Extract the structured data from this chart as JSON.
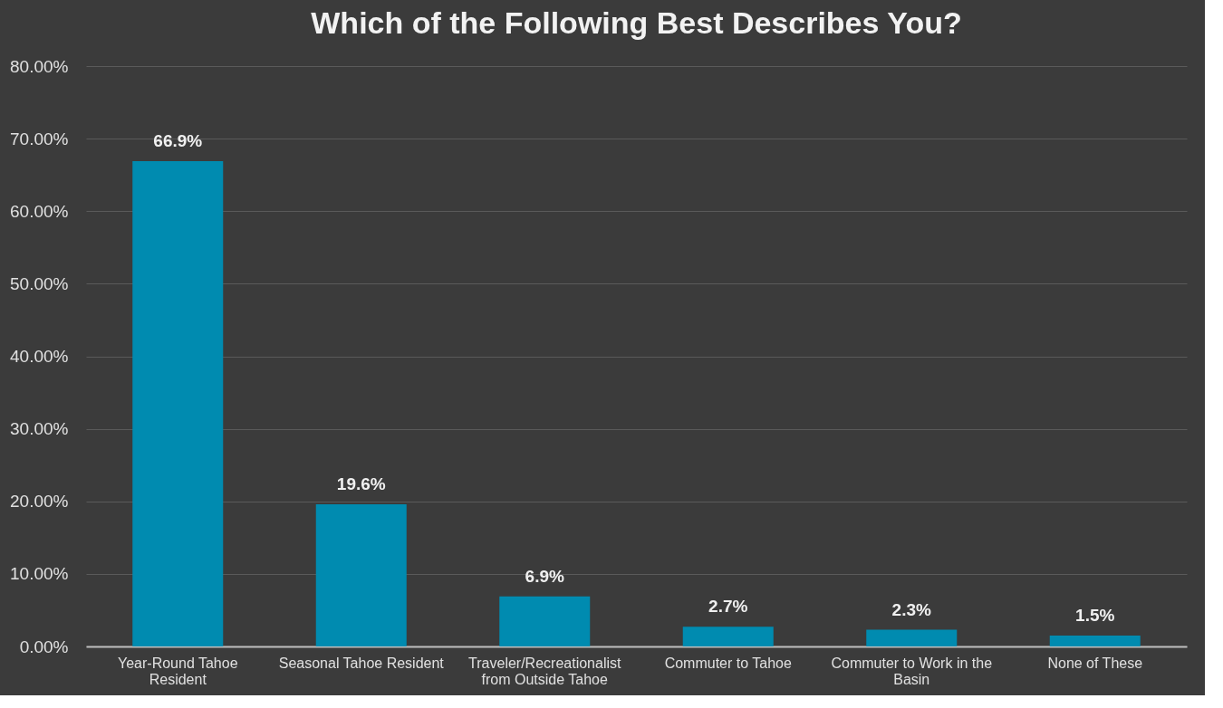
{
  "chart_data": {
    "type": "bar",
    "title": "Which of the Following Best Describes You?",
    "categories": [
      "Year-Round Tahoe Resident",
      "Seasonal Tahoe Resident",
      "Traveler/Recreationalist from Outside Tahoe",
      "Commuter to Tahoe",
      "Commuter to Work in the Basin",
      "None of These"
    ],
    "values": [
      66.9,
      19.6,
      6.9,
      2.7,
      2.3,
      1.5
    ],
    "value_labels": [
      "66.9%",
      "19.6%",
      "6.9%",
      "2.7%",
      "2.3%",
      "1.5%"
    ],
    "color": "#008bb0",
    "ylim": [
      0,
      80
    ],
    "yticks": [
      {
        "value": 0,
        "label": "0.00%"
      },
      {
        "value": 10,
        "label": "10.00%"
      },
      {
        "value": 20,
        "label": "20.00%"
      },
      {
        "value": 30,
        "label": "30.00%"
      },
      {
        "value": 40,
        "label": "40.00%"
      },
      {
        "value": 50,
        "label": "50.00%"
      },
      {
        "value": 60,
        "label": "60.00%"
      },
      {
        "value": 70,
        "label": "70.00%"
      },
      {
        "value": 80,
        "label": "80.00%"
      }
    ],
    "grid": "y"
  }
}
